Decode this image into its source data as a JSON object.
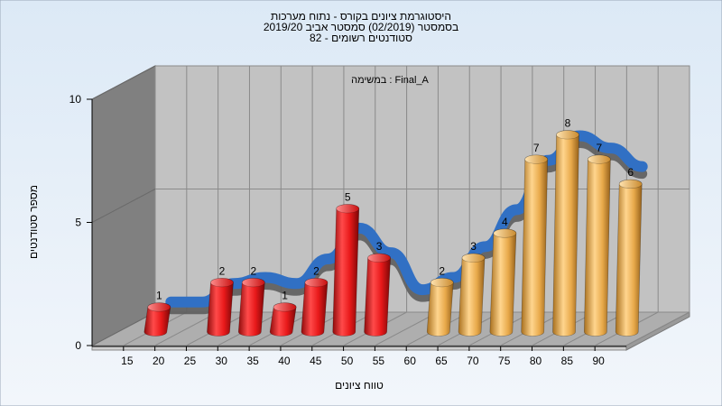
{
  "chart_data": {
    "type": "bar",
    "title_lines": [
      "היסטוגרמת ציונים בקורס - נתוח מערכות",
      "בסמסטר  (02/2019)  סמסטר אביב 2019/20",
      "סטודנטים רשומים - 82"
    ],
    "annotation": "במשימה : Final_A",
    "xlabel": "טווח ציונים",
    "ylabel": "מספר סטודנטים",
    "x_ticks": [
      "15",
      "20",
      "25",
      "30",
      "35",
      "40",
      "45",
      "50",
      "55",
      "60",
      "65",
      "70",
      "75",
      "80",
      "85",
      "90"
    ],
    "y_ticks": [
      "0",
      "5",
      "10"
    ],
    "ylim": [
      0,
      10
    ],
    "categories": [
      "15",
      "20",
      "25",
      "30",
      "35",
      "40",
      "45",
      "50",
      "55",
      "60",
      "65",
      "70",
      "75",
      "80",
      "85",
      "90"
    ],
    "values": [
      1,
      0,
      2,
      2,
      1,
      2,
      5,
      3,
      0,
      2,
      3,
      4,
      7,
      8,
      7,
      6
    ],
    "bar_groups": [
      "fail",
      "fail",
      "fail",
      "fail",
      "fail",
      "fail",
      "fail",
      "fail",
      "pass",
      "pass",
      "pass",
      "pass",
      "pass",
      "pass",
      "pass",
      "pass"
    ],
    "trend_curve": true,
    "grid": true,
    "colors": {
      "fail": "#e8191a",
      "pass": "#e8a94a",
      "curve": "#3170c4",
      "curve_shadow": "#5d5d5d",
      "back_wall": "#c2c2c2",
      "side_wall": "#808080",
      "floor": "#aeaeae",
      "background_top": "#dce9f6",
      "background_bottom": "#f2f6fb"
    }
  }
}
